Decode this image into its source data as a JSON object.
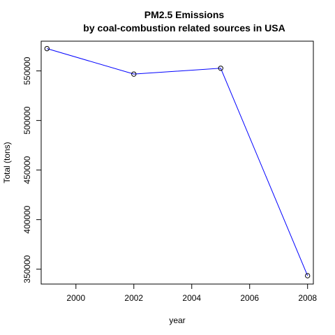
{
  "chart_data": {
    "type": "line",
    "title": "PM2.5 Emissions",
    "subtitle": "by coal-combustion related sources in USA",
    "xlabel": "year",
    "ylabel": "Total (tons)",
    "x": [
      1999,
      2002,
      2005,
      2008
    ],
    "series": [
      {
        "values": [
          572500,
          546800,
          552700,
          343400
        ]
      }
    ],
    "xlim": [
      1998.8,
      2008.2
    ],
    "ylim": [
      335000,
      580000
    ],
    "x_ticks": [
      "2000",
      "2002",
      "2004",
      "2006",
      "2008"
    ],
    "y_ticks": [
      "350000",
      "400000",
      "450000",
      "500000",
      "550000"
    ],
    "grid": false,
    "legend": "none",
    "line_color": "#0000FF",
    "marker": "open-circle",
    "marker_color": "#000000"
  }
}
